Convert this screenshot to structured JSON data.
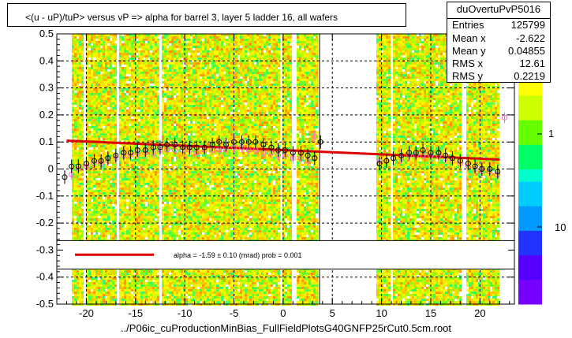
{
  "header": {
    "title": "<(u - uP)/tuP> versus   vP => alpha for barrel 3, layer 5 ladder 16, all wafers"
  },
  "stats": {
    "name": "duOvertuPvP5016",
    "rows": [
      {
        "label": "Entries",
        "value": "125799"
      },
      {
        "label": "Mean x",
        "value": "-2.622"
      },
      {
        "label": "Mean y",
        "value": "0.04855"
      },
      {
        "label": "RMS x",
        "value": "12.61"
      },
      {
        "label": "RMS y",
        "value": "0.2219"
      }
    ]
  },
  "fit_legend": {
    "text": "alpha =    -1.59 ±  0.10 (mrad) prob = 0.001"
  },
  "footer": {
    "filename": "../P06ic_cuProductionMinBias_FullFieldPlotsG40GNFP25rCut0.5cm.root"
  },
  "chart_data": {
    "type": "scatter",
    "xlim": [
      -23,
      23.5
    ],
    "ylim": [
      -0.5,
      0.5
    ],
    "x_ticks": [
      -20,
      -15,
      -10,
      -5,
      0,
      5,
      10,
      15,
      20
    ],
    "x_tick_labels": [
      "-20",
      "-15",
      "-10",
      "-5",
      "0",
      "5",
      "10",
      "15",
      "20"
    ],
    "y_ticks": [
      -0.5,
      -0.4,
      -0.3,
      -0.2,
      -0.1,
      0,
      0.1,
      0.2,
      0.3,
      0.4,
      0.5
    ],
    "y_tick_labels": [
      "-0.5",
      "-0.4",
      "-0.3",
      "-0.2",
      "-0.1",
      "0",
      "0.1",
      "0.2",
      "0.3",
      "0.4",
      "0.5"
    ],
    "grid": true,
    "occupied_x_ranges": [
      [
        -21.5,
        3.5
      ],
      [
        9.5,
        22
      ]
    ],
    "colz_scale": {
      "labels": [
        "1",
        "10"
      ],
      "label_values": [
        1,
        10
      ]
    },
    "black_profile": {
      "x": [
        -22.2,
        -21.5,
        -20.8,
        -20,
        -19.2,
        -18.5,
        -17.8,
        -17,
        -16.2,
        -15.5,
        -14.8,
        -14,
        -13.2,
        -12.5,
        -11.8,
        -11,
        -10.2,
        -9.5,
        -8.8,
        -8,
        -7.2,
        -6.5,
        -5.8,
        -5,
        -4.2,
        -3.5,
        -2.8,
        -2,
        -1.2,
        -0.5,
        0.2,
        1,
        1.8,
        2.5,
        3.2,
        3.8,
        9.8,
        10.5,
        11.2,
        12,
        12.8,
        13.5,
        14.2,
        15,
        15.8,
        16.5,
        17.2,
        18,
        18.8,
        19.5,
        20.2,
        21,
        21.8
      ],
      "y": [
        -0.03,
        0.01,
        0.01,
        0.02,
        0.03,
        0.03,
        0.04,
        0.05,
        0.06,
        0.06,
        0.07,
        0.07,
        0.08,
        0.08,
        0.09,
        0.09,
        0.08,
        0.08,
        0.08,
        0.08,
        0.09,
        0.1,
        0.09,
        0.1,
        0.1,
        0.1,
        0.1,
        0.09,
        0.08,
        0.07,
        0.07,
        0.06,
        0.06,
        0.05,
        0.04,
        0.1,
        0.02,
        0.03,
        0.04,
        0.05,
        0.06,
        0.06,
        0.07,
        0.06,
        0.06,
        0.05,
        0.04,
        0.03,
        0.02,
        0.01,
        0.0,
        0.0,
        -0.01
      ]
    },
    "pink_profile": {
      "x": [
        -21.5,
        -20.8,
        -20,
        -19.2,
        -18.5,
        -17.8,
        -17,
        -16.2,
        -15.5,
        -14.8,
        -14,
        -13.2,
        -12.5,
        -11.8,
        -11,
        -10.2,
        -9.5,
        -8.8,
        -8,
        -7.2,
        -6.5,
        -5.8,
        -5,
        -4.2,
        -3.5,
        -2.8,
        -2,
        -1.2,
        -0.5,
        0.2,
        1,
        1.8,
        2.5,
        3.2,
        9.8,
        10.5,
        11.2,
        12,
        12.8,
        13.5,
        14.2,
        15,
        15.8,
        16.5,
        17.2,
        18,
        18.8,
        19.5,
        20.2,
        21,
        21.8,
        22.5
      ],
      "y": [
        -0.02,
        0.0,
        0.01,
        0.02,
        0.02,
        0.03,
        0.04,
        0.05,
        0.05,
        0.06,
        0.06,
        0.06,
        0.07,
        0.07,
        0.07,
        0.07,
        0.07,
        0.06,
        0.07,
        0.07,
        0.07,
        0.08,
        0.08,
        0.08,
        0.07,
        0.07,
        0.06,
        0.06,
        0.05,
        0.05,
        0.04,
        0.04,
        0.03,
        0.12,
        0.03,
        0.03,
        0.04,
        0.04,
        0.05,
        0.05,
        0.05,
        0.05,
        0.05,
        0.04,
        0.03,
        0.02,
        0.01,
        0.0,
        -0.01,
        -0.01,
        -0.02,
        0.19
      ]
    },
    "fit_line": {
      "x": [
        -22,
        22
      ],
      "y": [
        0.105,
        0.035
      ]
    }
  }
}
